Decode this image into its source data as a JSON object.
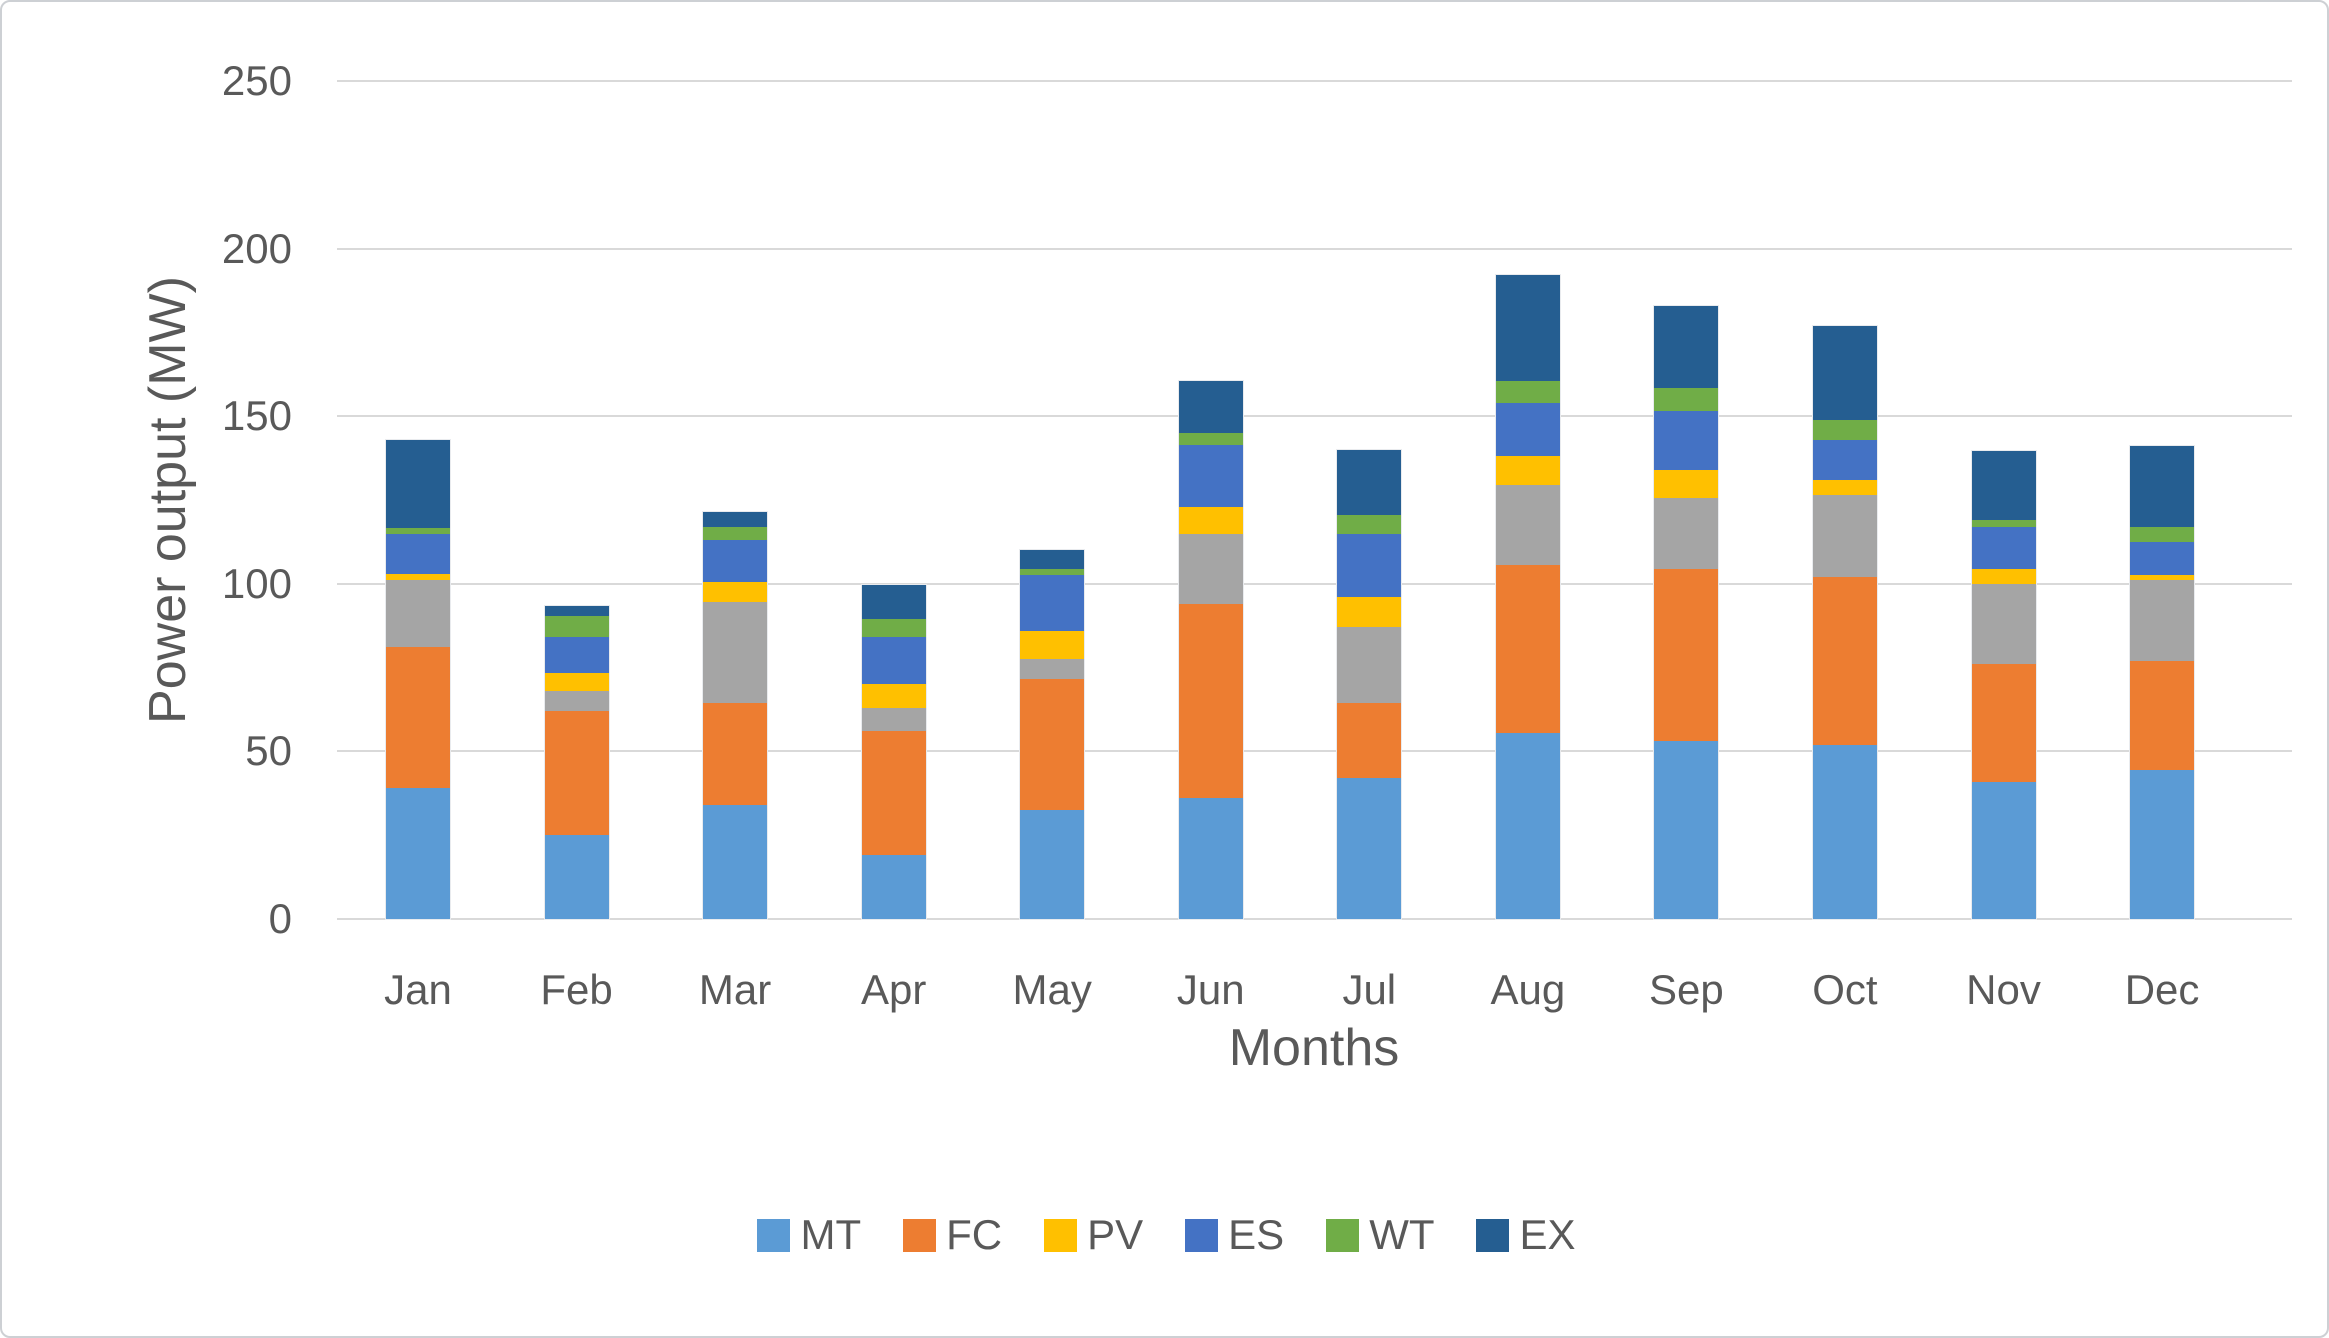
{
  "chart_data": {
    "type": "bar",
    "stacked": true,
    "xlabel": "Months",
    "ylabel": "Power output (MW)",
    "ylim": [
      0,
      250
    ],
    "yticks": [
      0,
      50,
      100,
      150,
      200,
      250
    ],
    "grid": "horizontal",
    "gridline_color": "#d9d9d9",
    "text_color": "#595959",
    "categories": [
      "Jan",
      "Feb",
      "Mar",
      "Apr",
      "May",
      "Jun",
      "Jul",
      "Aug",
      "Sep",
      "Oct",
      "Nov",
      "Dec"
    ],
    "series": [
      {
        "name": "MT",
        "color": "#5B9BD5",
        "in_legend": true,
        "values": [
          39,
          25,
          34,
          19,
          32.5,
          36,
          42,
          55.5,
          53,
          52,
          41,
          44.5
        ]
      },
      {
        "name": "FC",
        "color": "#ED7D31",
        "in_legend": true,
        "values": [
          42,
          37,
          30.5,
          37,
          39,
          58,
          22.5,
          50,
          51.5,
          50,
          35,
          32.5
        ]
      },
      {
        "name": "unlabeled-gray",
        "color": "#A5A5A5",
        "in_legend": false,
        "values": [
          20,
          6,
          30,
          7,
          6,
          21,
          22.5,
          24,
          21,
          24.5,
          24,
          24
        ]
      },
      {
        "name": "PV",
        "color": "#FFC000",
        "in_legend": true,
        "values": [
          2,
          5.5,
          6,
          7,
          8.5,
          8,
          9,
          8.5,
          8.5,
          4.5,
          4.5,
          1.5
        ]
      },
      {
        "name": "ES",
        "color": "#4472C4",
        "in_legend": true,
        "values": [
          12,
          10.5,
          12.5,
          14,
          16.5,
          18.5,
          19,
          16,
          17.5,
          12,
          12.5,
          10
        ]
      },
      {
        "name": "WT",
        "color": "#70AD47",
        "in_legend": true,
        "values": [
          1.5,
          6.5,
          4,
          5.5,
          2,
          3.5,
          5.5,
          6.5,
          7,
          6,
          2,
          4.5
        ]
      },
      {
        "name": "EX",
        "color": "#255E91",
        "in_legend": true,
        "values": [
          26.5,
          3,
          4.5,
          10,
          5.5,
          15.5,
          19.5,
          31.5,
          24.5,
          28,
          20.5,
          24
        ]
      }
    ],
    "totals": [
      143,
      93.5,
      121.5,
      99.5,
      110,
      160.5,
      140,
      192,
      183,
      177,
      139.5,
      141
    ],
    "legend": {
      "position": "bottom",
      "entries": [
        "MT",
        "FC",
        "PV",
        "ES",
        "WT",
        "EX"
      ]
    }
  }
}
